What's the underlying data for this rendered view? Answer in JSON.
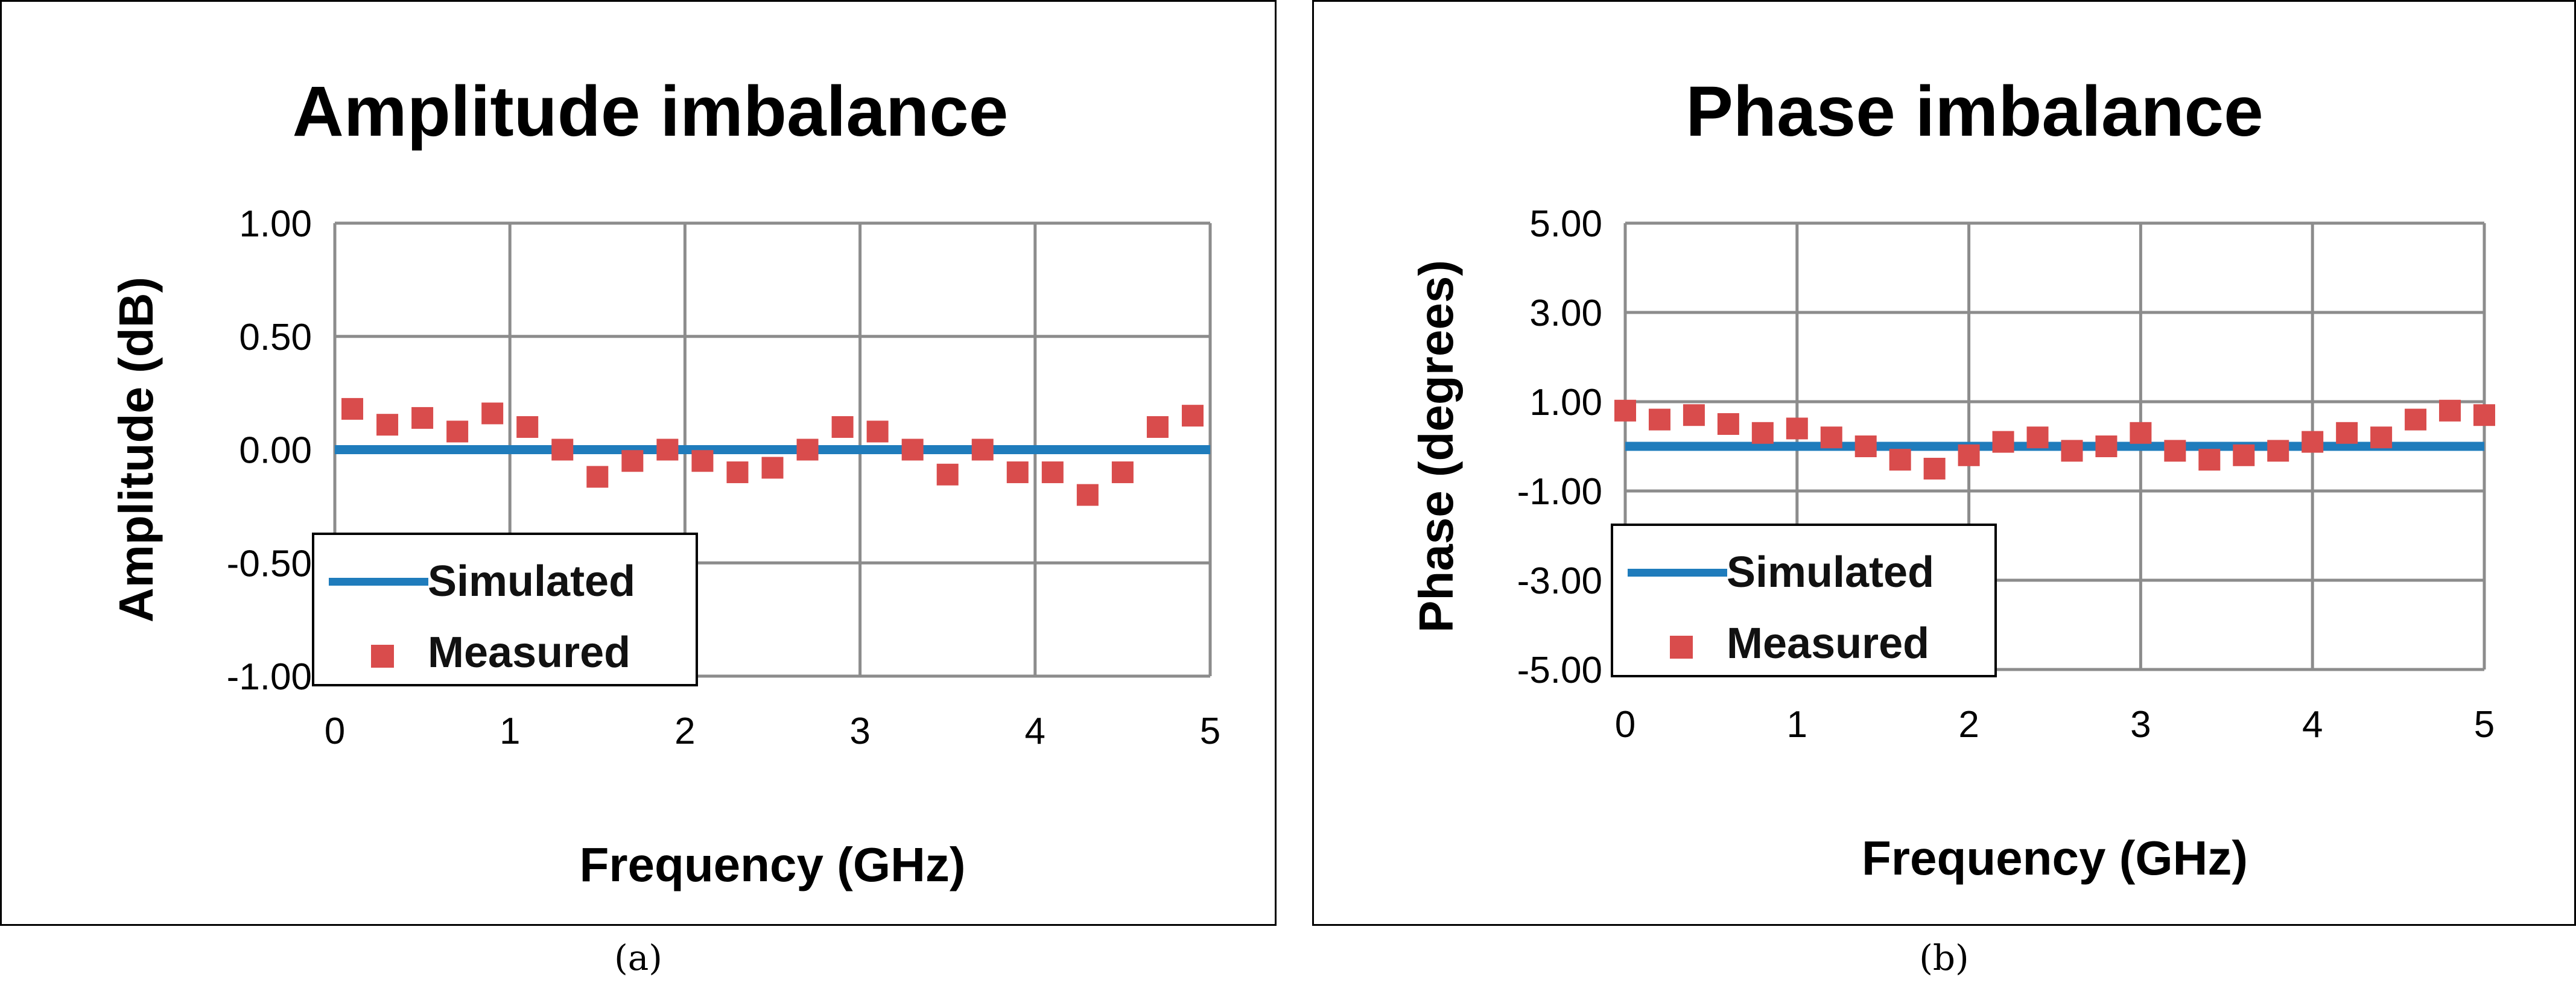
{
  "chart_data": [
    {
      "type": "scatter",
      "title": "Amplitude imbalance",
      "xlabel": "Frequency (GHz)",
      "ylabel": "Amplitude (dB)",
      "xlim": [
        0,
        5
      ],
      "ylim": [
        -1.0,
        1.0
      ],
      "x_ticks": [
        "0",
        "1",
        "2",
        "3",
        "4",
        "5"
      ],
      "y_ticks": [
        "1.00",
        "0.50",
        "0.00",
        "-0.50",
        "-1.00"
      ],
      "grid": true,
      "legend": "bottom-left",
      "series": [
        {
          "name": "Simulated",
          "kind": "line",
          "color": "#1f7cbc",
          "points": [
            [
              0,
              0.0
            ],
            [
              5,
              0.0
            ]
          ]
        },
        {
          "name": "Measured",
          "kind": "marker",
          "color": "#d94c4c",
          "points": [
            [
              0.1,
              0.18
            ],
            [
              0.3,
              0.11
            ],
            [
              0.5,
              0.14
            ],
            [
              0.7,
              0.08
            ],
            [
              0.9,
              0.16
            ],
            [
              1.1,
              0.1
            ],
            [
              1.3,
              0.0
            ],
            [
              1.5,
              -0.12
            ],
            [
              1.7,
              -0.05
            ],
            [
              1.9,
              0.0
            ],
            [
              2.1,
              -0.05
            ],
            [
              2.3,
              -0.1
            ],
            [
              2.5,
              -0.08
            ],
            [
              2.7,
              0.0
            ],
            [
              2.9,
              0.1
            ],
            [
              3.1,
              0.08
            ],
            [
              3.3,
              0.0
            ],
            [
              3.5,
              -0.11
            ],
            [
              3.7,
              0.0
            ],
            [
              3.9,
              -0.1
            ],
            [
              4.1,
              -0.1
            ],
            [
              4.3,
              -0.2
            ],
            [
              4.5,
              -0.1
            ],
            [
              4.7,
              0.1
            ],
            [
              4.9,
              0.15
            ]
          ]
        }
      ],
      "caption": "(a)"
    },
    {
      "type": "scatter",
      "title": "Phase imbalance",
      "xlabel": "Frequency (GHz)",
      "ylabel": "Phase (degrees)",
      "xlim": [
        0,
        5
      ],
      "ylim": [
        -5.0,
        5.0
      ],
      "x_ticks": [
        "0",
        "1",
        "2",
        "3",
        "4",
        "5"
      ],
      "y_ticks": [
        "5.00",
        "3.00",
        "1.00",
        "-1.00",
        "-3.00",
        "-5.00"
      ],
      "grid": true,
      "legend": "bottom-left",
      "series": [
        {
          "name": "Simulated",
          "kind": "line",
          "color": "#1f7cbc",
          "points": [
            [
              0,
              0.0
            ],
            [
              5,
              0.0
            ]
          ]
        },
        {
          "name": "Measured",
          "kind": "marker",
          "color": "#d94c4c",
          "points": [
            [
              0.0,
              0.8
            ],
            [
              0.2,
              0.6
            ],
            [
              0.4,
              0.7
            ],
            [
              0.6,
              0.5
            ],
            [
              0.8,
              0.3
            ],
            [
              1.0,
              0.4
            ],
            [
              1.2,
              0.2
            ],
            [
              1.4,
              0.0
            ],
            [
              1.6,
              -0.3
            ],
            [
              1.8,
              -0.5
            ],
            [
              2.0,
              -0.2
            ],
            [
              2.2,
              0.1
            ],
            [
              2.4,
              0.2
            ],
            [
              2.6,
              -0.1
            ],
            [
              2.8,
              0.0
            ],
            [
              3.0,
              0.3
            ],
            [
              3.2,
              -0.1
            ],
            [
              3.4,
              -0.3
            ],
            [
              3.6,
              -0.2
            ],
            [
              3.8,
              -0.1
            ],
            [
              4.0,
              0.1
            ],
            [
              4.2,
              0.3
            ],
            [
              4.4,
              0.2
            ],
            [
              4.6,
              0.6
            ],
            [
              4.8,
              0.8
            ],
            [
              5.0,
              0.7
            ]
          ]
        }
      ],
      "caption": "(b)"
    }
  ]
}
